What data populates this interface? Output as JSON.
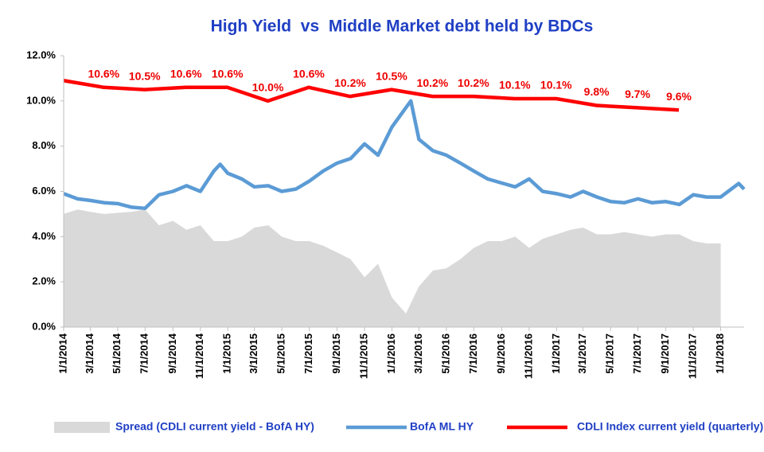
{
  "chart_data": {
    "type": "line",
    "title": "High Yield  vs  Middle Market debt held by BDCs",
    "xlim": [
      "2014-01-01",
      "2018-02-22"
    ],
    "xticks": [
      {
        "value": "2014-01-01",
        "label": "1/1/2014"
      },
      {
        "value": "2014-03-01",
        "label": "3/1/2014"
      },
      {
        "value": "2014-05-01",
        "label": "5/1/2014"
      },
      {
        "value": "2014-07-01",
        "label": "7/1/2014"
      },
      {
        "value": "2014-09-01",
        "label": "9/1/2014"
      },
      {
        "value": "2014-11-01",
        "label": "11/1/2014"
      },
      {
        "value": "2015-01-01",
        "label": "1/1/2015"
      },
      {
        "value": "2015-03-01",
        "label": "3/1/2015"
      },
      {
        "value": "2015-05-01",
        "label": "5/1/2015"
      },
      {
        "value": "2015-07-01",
        "label": "7/1/2015"
      },
      {
        "value": "2015-09-01",
        "label": "9/1/2015"
      },
      {
        "value": "2015-11-01",
        "label": "11/1/2015"
      },
      {
        "value": "2016-01-01",
        "label": "1/1/2016"
      },
      {
        "value": "2016-03-01",
        "label": "3/1/2016"
      },
      {
        "value": "2016-05-01",
        "label": "5/1/2016"
      },
      {
        "value": "2016-07-01",
        "label": "7/1/2016"
      },
      {
        "value": "2016-09-01",
        "label": "9/1/2016"
      },
      {
        "value": "2016-11-01",
        "label": "11/1/2016"
      },
      {
        "value": "2017-01-01",
        "label": "1/1/2017"
      },
      {
        "value": "2017-03-01",
        "label": "3/1/2017"
      },
      {
        "value": "2017-05-01",
        "label": "5/1/2017"
      },
      {
        "value": "2017-07-01",
        "label": "7/1/2017"
      },
      {
        "value": "2017-09-01",
        "label": "9/1/2017"
      },
      {
        "value": "2017-11-01",
        "label": "11/1/2017"
      },
      {
        "value": "2018-01-01",
        "label": "1/1/2018"
      }
    ],
    "ylim": [
      0,
      12
    ],
    "yticks": [
      {
        "value": 0,
        "label": "0.0%"
      },
      {
        "value": 2,
        "label": "2.0%"
      },
      {
        "value": 4,
        "label": "4.0%"
      },
      {
        "value": 6,
        "label": "6.0%"
      },
      {
        "value": 8,
        "label": "8.0%"
      },
      {
        "value": 10,
        "label": "10.0%"
      },
      {
        "value": 12,
        "label": "12.0%"
      }
    ],
    "legend": "bottom",
    "series": [
      {
        "name": "Spread (CDLI current yield - BofA HY)",
        "kind": "area",
        "color": "#d9d9d9",
        "x": [
          "2014-01-01",
          "2014-02-01",
          "2014-03-01",
          "2014-04-01",
          "2014-05-01",
          "2014-06-01",
          "2014-07-01",
          "2014-08-01",
          "2014-09-01",
          "2014-10-01",
          "2014-11-01",
          "2014-12-01",
          "2015-01-01",
          "2015-02-01",
          "2015-03-01",
          "2015-04-01",
          "2015-05-01",
          "2015-06-01",
          "2015-07-01",
          "2015-08-01",
          "2015-09-01",
          "2015-10-01",
          "2015-11-01",
          "2015-12-01",
          "2016-01-01",
          "2016-02-01",
          "2016-03-01",
          "2016-04-01",
          "2016-05-01",
          "2016-06-01",
          "2016-07-01",
          "2016-08-01",
          "2016-09-01",
          "2016-10-01",
          "2016-11-01",
          "2016-12-01",
          "2017-01-01",
          "2017-02-01",
          "2017-03-01",
          "2017-04-01",
          "2017-05-01",
          "2017-06-01",
          "2017-07-01",
          "2017-08-01",
          "2017-09-01",
          "2017-10-01",
          "2017-11-01",
          "2017-12-01",
          "2018-01-01"
        ],
        "values": [
          5.0,
          5.2,
          5.1,
          5.0,
          5.05,
          5.1,
          5.2,
          4.5,
          4.7,
          4.3,
          4.5,
          3.8,
          3.8,
          4.0,
          4.4,
          4.5,
          4.0,
          3.8,
          3.8,
          3.6,
          3.3,
          3.0,
          2.2,
          2.8,
          1.3,
          0.6,
          1.8,
          2.5,
          2.6,
          3.0,
          3.5,
          3.8,
          3.8,
          4.0,
          3.5,
          3.9,
          4.1,
          4.3,
          4.4,
          4.1,
          4.1,
          4.2,
          4.1,
          4.0,
          4.1,
          4.1,
          3.8,
          3.7,
          3.7
        ]
      },
      {
        "name": "BofA ML HY",
        "kind": "line",
        "color": "#5b9bd5",
        "x": [
          "2014-01-01",
          "2014-02-01",
          "2014-03-01",
          "2014-04-01",
          "2014-05-01",
          "2014-06-01",
          "2014-07-01",
          "2014-08-01",
          "2014-09-01",
          "2014-10-01",
          "2014-11-01",
          "2014-12-01",
          "2014-12-15",
          "2015-01-01",
          "2015-02-01",
          "2015-03-01",
          "2015-04-01",
          "2015-05-01",
          "2015-06-01",
          "2015-07-01",
          "2015-08-01",
          "2015-09-01",
          "2015-10-01",
          "2015-11-01",
          "2015-12-01",
          "2016-01-01",
          "2016-02-01",
          "2016-02-12",
          "2016-03-01",
          "2016-04-01",
          "2016-05-01",
          "2016-06-01",
          "2016-07-01",
          "2016-08-01",
          "2016-09-01",
          "2016-10-01",
          "2016-11-01",
          "2016-12-01",
          "2017-01-01",
          "2017-02-01",
          "2017-03-01",
          "2017-04-01",
          "2017-05-01",
          "2017-06-01",
          "2017-07-01",
          "2017-08-01",
          "2017-09-01",
          "2017-10-01",
          "2017-11-01",
          "2017-12-01",
          "2018-01-01",
          "2018-02-10",
          "2018-02-22"
        ],
        "values": [
          5.9,
          5.67,
          5.6,
          5.5,
          5.46,
          5.3,
          5.25,
          5.85,
          6.0,
          6.25,
          6.0,
          6.9,
          7.2,
          6.8,
          6.55,
          6.2,
          6.25,
          6.0,
          6.1,
          6.45,
          6.9,
          7.25,
          7.45,
          8.1,
          7.6,
          8.85,
          9.7,
          10.0,
          8.3,
          7.8,
          7.6,
          7.25,
          6.9,
          6.55,
          6.37,
          6.2,
          6.55,
          6.0,
          5.9,
          5.75,
          6.0,
          5.75,
          5.55,
          5.5,
          5.67,
          5.5,
          5.55,
          5.42,
          5.85,
          5.75,
          5.75,
          6.35,
          6.1
        ]
      },
      {
        "name": "CDLI Index current yield (quarterly)",
        "kind": "line",
        "color": "#ff0000",
        "x": [
          "2014-01-01",
          "2014-03-31",
          "2014-06-30",
          "2014-09-30",
          "2014-12-31",
          "2015-03-31",
          "2015-06-30",
          "2015-09-30",
          "2015-12-31",
          "2016-03-31",
          "2016-06-30",
          "2016-09-30",
          "2016-12-31",
          "2017-03-31",
          "2017-06-30",
          "2017-09-30"
        ],
        "values": [
          10.9,
          10.6,
          10.5,
          10.6,
          10.6,
          10.0,
          10.6,
          10.2,
          10.5,
          10.2,
          10.2,
          10.1,
          10.1,
          9.8,
          9.7,
          9.6
        ],
        "value_labels": [
          null,
          "10.6%",
          "10.5%",
          "10.6%",
          "10.6%",
          "10.0%",
          "10.6%",
          "10.2%",
          "10.5%",
          "10.2%",
          "10.2%",
          "10.1%",
          "10.1%",
          "9.8%",
          "9.7%",
          "9.6%"
        ]
      }
    ]
  }
}
